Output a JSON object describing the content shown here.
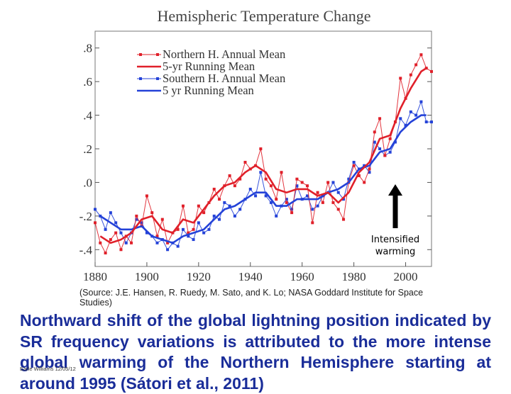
{
  "chart_data": {
    "type": "line",
    "title": "Hemispheric Temperature Change",
    "xlabel": "",
    "ylabel": "",
    "xlim": [
      1880,
      2010
    ],
    "ylim": [
      -0.5,
      0.9
    ],
    "x_ticks": [
      1880,
      1900,
      1920,
      1940,
      1960,
      1980,
      2000
    ],
    "y_ticks": [
      -0.4,
      -0.2,
      0.0,
      0.2,
      0.4,
      0.6,
      0.8
    ],
    "y_tick_labels": [
      "-.4",
      "-.2",
      ".0",
      ".2",
      ".4",
      ".6",
      ".8"
    ],
    "legend_position": "top-left",
    "annotation": [
      "Intensified",
      "warming"
    ],
    "series": [
      {
        "name": "Northern H. Annual Mean",
        "color": "#e0202a",
        "style": "markers",
        "x": [
          1880,
          1882,
          1884,
          1886,
          1888,
          1890,
          1892,
          1894,
          1896,
          1898,
          1900,
          1902,
          1904,
          1906,
          1908,
          1910,
          1912,
          1914,
          1916,
          1918,
          1920,
          1922,
          1924,
          1926,
          1928,
          1930,
          1932,
          1934,
          1936,
          1938,
          1940,
          1942,
          1944,
          1946,
          1948,
          1950,
          1952,
          1954,
          1956,
          1958,
          1960,
          1962,
          1964,
          1966,
          1968,
          1970,
          1972,
          1974,
          1976,
          1978,
          1980,
          1982,
          1984,
          1986,
          1988,
          1990,
          1992,
          1994,
          1996,
          1998,
          2000,
          2002,
          2004,
          2006,
          2008,
          2010
        ],
        "values": [
          -0.24,
          -0.36,
          -0.42,
          -0.34,
          -0.3,
          -0.4,
          -0.32,
          -0.36,
          -0.2,
          -0.26,
          -0.08,
          -0.18,
          -0.32,
          -0.22,
          -0.36,
          -0.3,
          -0.28,
          -0.14,
          -0.3,
          -0.28,
          -0.14,
          -0.18,
          -0.12,
          -0.04,
          -0.1,
          -0.02,
          0.04,
          -0.02,
          0.02,
          0.12,
          0.08,
          0.1,
          0.2,
          0.02,
          -0.02,
          -0.1,
          0.06,
          -0.12,
          -0.18,
          0.02,
          0.0,
          -0.02,
          -0.24,
          -0.06,
          -0.12,
          0.0,
          -0.12,
          -0.16,
          -0.22,
          0.0,
          0.1,
          0.04,
          0.0,
          0.08,
          0.3,
          0.38,
          0.16,
          0.26,
          0.36,
          0.62,
          0.5,
          0.64,
          0.7,
          0.76,
          0.68,
          0.66
        ]
      },
      {
        "name": "5-yr Running Mean",
        "color": "#e0202a",
        "style": "thick-line",
        "x": [
          1882,
          1886,
          1890,
          1894,
          1898,
          1902,
          1906,
          1910,
          1914,
          1918,
          1922,
          1926,
          1930,
          1934,
          1938,
          1942,
          1946,
          1950,
          1954,
          1958,
          1962,
          1966,
          1970,
          1974,
          1978,
          1982,
          1986,
          1990,
          1994,
          1998,
          2002,
          2006,
          2008
        ],
        "values": [
          -0.32,
          -0.36,
          -0.34,
          -0.3,
          -0.22,
          -0.2,
          -0.28,
          -0.3,
          -0.22,
          -0.24,
          -0.16,
          -0.08,
          -0.02,
          0.0,
          0.06,
          0.1,
          0.06,
          -0.04,
          -0.06,
          -0.04,
          -0.04,
          -0.08,
          -0.06,
          -0.12,
          -0.06,
          0.06,
          0.12,
          0.26,
          0.28,
          0.44,
          0.56,
          0.66,
          0.68
        ]
      },
      {
        "name": "Southern H. Annual Mean",
        "color": "#2442d8",
        "style": "markers",
        "x": [
          1880,
          1882,
          1884,
          1886,
          1888,
          1890,
          1892,
          1894,
          1896,
          1898,
          1900,
          1902,
          1904,
          1906,
          1908,
          1910,
          1912,
          1914,
          1916,
          1918,
          1920,
          1922,
          1924,
          1926,
          1928,
          1930,
          1932,
          1934,
          1936,
          1938,
          1940,
          1942,
          1944,
          1946,
          1948,
          1950,
          1952,
          1954,
          1956,
          1958,
          1960,
          1962,
          1964,
          1966,
          1968,
          1970,
          1972,
          1974,
          1976,
          1978,
          1980,
          1982,
          1984,
          1986,
          1988,
          1990,
          1992,
          1994,
          1996,
          1998,
          2000,
          2002,
          2004,
          2006,
          2008,
          2010
        ],
        "values": [
          -0.16,
          -0.2,
          -0.28,
          -0.18,
          -0.24,
          -0.3,
          -0.36,
          -0.3,
          -0.22,
          -0.24,
          -0.3,
          -0.32,
          -0.36,
          -0.34,
          -0.4,
          -0.36,
          -0.38,
          -0.28,
          -0.32,
          -0.34,
          -0.24,
          -0.3,
          -0.28,
          -0.2,
          -0.22,
          -0.12,
          -0.14,
          -0.2,
          -0.16,
          -0.1,
          -0.04,
          -0.08,
          0.06,
          -0.08,
          -0.12,
          -0.2,
          -0.14,
          -0.1,
          -0.16,
          -0.02,
          -0.1,
          -0.08,
          -0.16,
          -0.14,
          -0.08,
          -0.06,
          0.0,
          -0.06,
          -0.1,
          0.02,
          0.12,
          0.08,
          0.1,
          0.06,
          0.24,
          0.2,
          0.16,
          0.18,
          0.24,
          0.38,
          0.34,
          0.42,
          0.4,
          0.48,
          0.36,
          0.36
        ]
      },
      {
        "name": "5  yr Running Mean",
        "color": "#2442d8",
        "style": "thick-line",
        "x": [
          1882,
          1886,
          1890,
          1894,
          1898,
          1902,
          1906,
          1910,
          1914,
          1918,
          1922,
          1926,
          1930,
          1934,
          1938,
          1942,
          1946,
          1950,
          1954,
          1958,
          1962,
          1966,
          1970,
          1974,
          1978,
          1982,
          1986,
          1990,
          1994,
          1998,
          2002,
          2006,
          2008
        ],
        "values": [
          -0.2,
          -0.24,
          -0.28,
          -0.28,
          -0.26,
          -0.32,
          -0.34,
          -0.36,
          -0.32,
          -0.3,
          -0.28,
          -0.22,
          -0.16,
          -0.14,
          -0.1,
          -0.06,
          -0.06,
          -0.14,
          -0.14,
          -0.1,
          -0.1,
          -0.1,
          -0.06,
          -0.04,
          0.0,
          0.08,
          0.1,
          0.18,
          0.2,
          0.3,
          0.36,
          0.4,
          0.4
        ]
      }
    ]
  },
  "source_text": "(Source: J.E. Hansen, R. Ruedy, M. Sato, and K. Lo; NASA Goddard Institute for Space Studies)",
  "caption": "Northward shift of the global lightning position indicated by SR frequency variations is attributed to the more intense global warming of the Northern Hemisphere starting at around 1995 (Sátori et al., 2011)",
  "credit": "Earle Williams 12/05/12",
  "colors": {
    "red": "#e0202a",
    "blue": "#2442d8",
    "caption": "#1a2d99"
  }
}
